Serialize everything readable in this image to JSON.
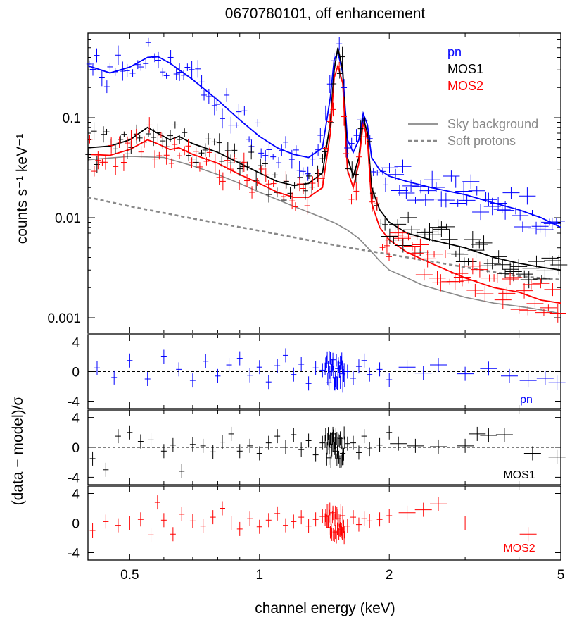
{
  "chart_data": [
    {
      "panel": "spectrum",
      "type": "line",
      "title": "0670780101, off enhancement",
      "xlabel": "channel energy (keV)",
      "ylabel": "counts s⁻¹ keV⁻¹",
      "x_scale": "log",
      "y_scale": "log",
      "xlim": [
        0.4,
        5
      ],
      "ylim": [
        0.0007,
        0.7
      ],
      "x_ticks": [
        0.5,
        1,
        2,
        5
      ],
      "x_tick_labels": [
        "0.5",
        "1",
        "2",
        "5"
      ],
      "y_ticks": [
        0.001,
        0.01,
        0.1
      ],
      "y_tick_labels": [
        "0.001",
        "0.01",
        "0.1"
      ],
      "legend_position": "top-right",
      "legend_top": [
        "pn",
        "MOS1",
        "MOS2"
      ],
      "legend_bottom": [
        "Sky background",
        "Soft protons"
      ],
      "colors": {
        "pn": "#0000ff",
        "MOS1": "#000000",
        "MOS2": "#ff0000",
        "sky": "#888888",
        "sp": "#888888"
      },
      "series": [
        {
          "name": "pn",
          "kind": "model",
          "x": [
            0.4,
            0.45,
            0.5,
            0.55,
            0.58,
            0.62,
            0.7,
            0.8,
            0.9,
            1.0,
            1.1,
            1.2,
            1.3,
            1.4,
            1.46,
            1.49,
            1.52,
            1.56,
            1.6,
            1.65,
            1.7,
            1.74,
            1.78,
            1.82,
            1.9,
            2.0,
            2.2,
            2.5,
            3.0,
            3.5,
            4.0,
            4.5,
            5.0
          ],
          "y": [
            0.33,
            0.28,
            0.32,
            0.4,
            0.41,
            0.35,
            0.24,
            0.15,
            0.095,
            0.065,
            0.05,
            0.043,
            0.04,
            0.05,
            0.16,
            0.38,
            0.45,
            0.28,
            0.06,
            0.045,
            0.06,
            0.11,
            0.085,
            0.04,
            0.03,
            0.026,
            0.023,
            0.02,
            0.017,
            0.014,
            0.012,
            0.01,
            0.008
          ]
        },
        {
          "name": "MOS1",
          "kind": "model",
          "x": [
            0.4,
            0.45,
            0.5,
            0.55,
            0.58,
            0.62,
            0.65,
            0.7,
            0.8,
            0.9,
            1.0,
            1.1,
            1.2,
            1.3,
            1.4,
            1.46,
            1.49,
            1.52,
            1.56,
            1.6,
            1.65,
            1.7,
            1.74,
            1.78,
            1.82,
            1.9,
            2.0,
            2.2,
            2.5,
            3.0,
            3.5,
            4.0,
            4.5,
            5.0
          ],
          "y": [
            0.05,
            0.052,
            0.06,
            0.08,
            0.07,
            0.06,
            0.065,
            0.055,
            0.045,
            0.035,
            0.028,
            0.023,
            0.021,
            0.022,
            0.028,
            0.09,
            0.3,
            0.5,
            0.3,
            0.04,
            0.026,
            0.04,
            0.1,
            0.07,
            0.02,
            0.012,
            0.009,
            0.007,
            0.006,
            0.005,
            0.004,
            0.0035,
            0.0032,
            0.003
          ]
        },
        {
          "name": "MOS2",
          "kind": "model",
          "x": [
            0.4,
            0.45,
            0.5,
            0.55,
            0.58,
            0.62,
            0.65,
            0.7,
            0.8,
            0.9,
            1.0,
            1.1,
            1.2,
            1.3,
            1.4,
            1.46,
            1.49,
            1.52,
            1.56,
            1.6,
            1.65,
            1.7,
            1.74,
            1.78,
            1.82,
            1.9,
            2.0,
            2.2,
            2.5,
            3.0,
            3.5,
            4.0,
            4.5,
            5.0
          ],
          "y": [
            0.043,
            0.042,
            0.048,
            0.06,
            0.055,
            0.048,
            0.05,
            0.043,
            0.035,
            0.027,
            0.022,
            0.018,
            0.016,
            0.016,
            0.02,
            0.07,
            0.25,
            0.33,
            0.22,
            0.03,
            0.02,
            0.035,
            0.09,
            0.06,
            0.014,
            0.008,
            0.006,
            0.0045,
            0.0035,
            0.0025,
            0.002,
            0.0018,
            0.0015,
            0.0014
          ]
        },
        {
          "name": "Sky background",
          "kind": "component",
          "x": [
            0.4,
            0.5,
            0.6,
            0.7,
            0.8,
            0.9,
            1.0,
            1.2,
            1.4,
            1.5,
            1.6,
            1.7,
            1.8,
            1.9,
            2.0,
            2.2,
            2.4,
            2.6,
            3.0,
            3.5,
            4.0,
            4.5,
            5.0
          ],
          "y": [
            0.038,
            0.041,
            0.04,
            0.033,
            0.027,
            0.022,
            0.018,
            0.013,
            0.01,
            0.0088,
            0.0075,
            0.0062,
            0.0048,
            0.0037,
            0.003,
            0.0025,
            0.0021,
            0.0019,
            0.0016,
            0.0014,
            0.0013,
            0.0012,
            0.0011
          ]
        },
        {
          "name": "Soft protons",
          "kind": "component",
          "x": [
            0.4,
            0.5,
            0.7,
            1.0,
            1.5,
            2.0,
            3.0,
            4.0,
            5.0
          ],
          "y": [
            0.016,
            0.013,
            0.0098,
            0.0074,
            0.0053,
            0.0043,
            0.0032,
            0.0026,
            0.0024
          ]
        }
      ]
    },
    {
      "panel": "residuals-pn",
      "type": "scatter",
      "label": "pn",
      "ylabel": "(data − model)/σ",
      "xlim": [
        0.4,
        5
      ],
      "ylim": [
        -5,
        5
      ],
      "y_ticks": [
        -4,
        0,
        4
      ],
      "x": [
        0.42,
        0.46,
        0.5,
        0.55,
        0.6,
        0.65,
        0.7,
        0.75,
        0.8,
        0.85,
        0.9,
        0.95,
        1.0,
        1.05,
        1.1,
        1.15,
        1.2,
        1.25,
        1.3,
        1.35,
        1.4,
        1.45,
        1.48,
        1.5,
        1.52,
        1.54,
        1.56,
        1.6,
        1.65,
        1.7,
        1.75,
        1.8,
        1.9,
        2.0,
        2.2,
        2.4,
        2.6,
        3.0,
        3.4,
        3.8,
        4.2,
        4.6,
        4.9
      ],
      "y": [
        0.5,
        -0.8,
        1.5,
        -1.0,
        2.0,
        0.3,
        -1.2,
        1.4,
        -0.6,
        0.9,
        1.8,
        -0.5,
        0.6,
        -1.4,
        0.8,
        2.2,
        -0.4,
        1.0,
        -1.6,
        0.5,
        0.2,
        -1.5,
        1.6,
        -0.8,
        0.4,
        1.2,
        -0.3,
        0.0,
        -0.9,
        0.7,
        1.5,
        -0.4,
        0.3,
        -1.1,
        0.6,
        -0.2,
        0.9,
        -0.3,
        0.4,
        -0.6,
        -1.2,
        -0.9,
        -1.5
      ]
    },
    {
      "panel": "residuals-mos1",
      "type": "scatter",
      "label": "MOS1",
      "xlim": [
        0.4,
        5
      ],
      "ylim": [
        -5,
        5
      ],
      "y_ticks": [
        -4,
        0,
        4
      ],
      "x": [
        0.41,
        0.44,
        0.47,
        0.5,
        0.53,
        0.56,
        0.6,
        0.63,
        0.66,
        0.7,
        0.74,
        0.78,
        0.82,
        0.86,
        0.9,
        0.95,
        1.0,
        1.05,
        1.1,
        1.15,
        1.2,
        1.25,
        1.3,
        1.35,
        1.4,
        1.45,
        1.48,
        1.5,
        1.52,
        1.54,
        1.56,
        1.6,
        1.65,
        1.7,
        1.75,
        1.8,
        1.9,
        2.0,
        2.1,
        2.3,
        2.6,
        3.0,
        3.2,
        3.4,
        3.7,
        4.3,
        4.9
      ],
      "y": [
        -1.5,
        -3.0,
        1.5,
        2.0,
        0.8,
        1.0,
        -0.5,
        0.3,
        -3.2,
        0.4,
        0.2,
        -0.6,
        0.7,
        1.8,
        -0.5,
        0.2,
        -0.8,
        0.6,
        1.5,
        0.0,
        1.7,
        -0.3,
        0.9,
        -1.0,
        0.6,
        -1.4,
        1.8,
        -0.5,
        -1.5,
        1.2,
        -0.8,
        0.5,
        0.6,
        -0.7,
        1.5,
        -0.2,
        0.3,
        2.0,
        0.5,
        0.2,
        0.1,
        0.2,
        1.8,
        1.6,
        1.7,
        -0.8,
        -1.3
      ]
    },
    {
      "panel": "residuals-mos2",
      "type": "scatter",
      "label": "MOS2",
      "xlabel": "channel energy (keV)",
      "xlim": [
        0.4,
        5
      ],
      "ylim": [
        -5,
        5
      ],
      "y_ticks": [
        -4,
        0,
        4
      ],
      "x": [
        0.41,
        0.44,
        0.47,
        0.5,
        0.53,
        0.56,
        0.58,
        0.6,
        0.63,
        0.66,
        0.7,
        0.74,
        0.78,
        0.82,
        0.86,
        0.9,
        0.95,
        1.0,
        1.05,
        1.1,
        1.15,
        1.2,
        1.25,
        1.3,
        1.35,
        1.4,
        1.45,
        1.48,
        1.5,
        1.52,
        1.54,
        1.56,
        1.6,
        1.65,
        1.7,
        1.75,
        1.8,
        1.9,
        2.0,
        2.2,
        2.4,
        2.6,
        3.0,
        4.2
      ],
      "y": [
        -1.0,
        0.2,
        -0.3,
        0.0,
        0.5,
        -1.6,
        2.8,
        0.4,
        -1.5,
        1.2,
        0.3,
        -0.4,
        0.8,
        2.0,
        0.0,
        -0.8,
        0.6,
        -0.5,
        0.4,
        1.3,
        -0.3,
        0.2,
        0.8,
        -0.4,
        0.5,
        0.9,
        -0.6,
        1.4,
        -1.2,
        0.6,
        -0.9,
        1.0,
        -0.4,
        0.8,
        -0.2,
        0.6,
        0.3,
        0.5,
        1.0,
        1.4,
        1.8,
        2.6,
        0.0,
        -1.5
      ]
    }
  ],
  "residual_labels": {
    "pn": "pn",
    "mos1": "MOS1",
    "mos2": "MOS2"
  }
}
